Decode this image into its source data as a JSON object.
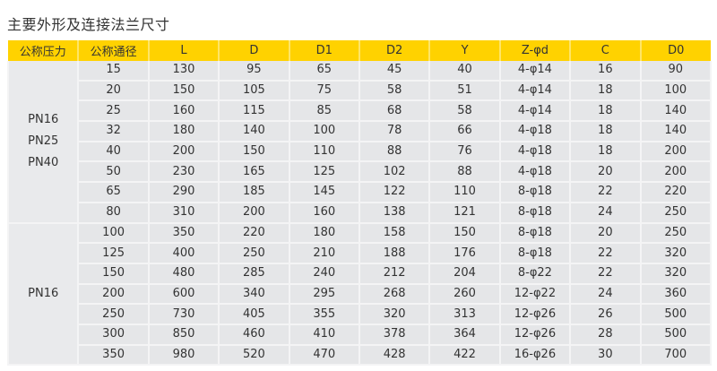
{
  "title": "主要外形及连接法兰尺寸",
  "colors": {
    "header_bg": "#ffd200",
    "body_bg": "#e5e6e8"
  },
  "table": {
    "headers": [
      "公称压力",
      "公称通径",
      "L",
      "D",
      "D1",
      "D2",
      "Y",
      "Z-φd",
      "C",
      "D0"
    ],
    "groups": [
      {
        "pressure": [
          "PN16",
          "PN25",
          "PN40"
        ],
        "rows": [
          [
            "15",
            "130",
            "95",
            "65",
            "45",
            "40",
            "4-φ14",
            "16",
            "90"
          ],
          [
            "20",
            "150",
            "105",
            "75",
            "58",
            "51",
            "4-φ14",
            "18",
            "100"
          ],
          [
            "25",
            "160",
            "115",
            "85",
            "68",
            "58",
            "4-φ14",
            "18",
            "140"
          ],
          [
            "32",
            "180",
            "140",
            "100",
            "78",
            "66",
            "4-φ18",
            "18",
            "140"
          ],
          [
            "40",
            "200",
            "150",
            "110",
            "88",
            "76",
            "4-φ18",
            "18",
            "200"
          ],
          [
            "50",
            "230",
            "165",
            "125",
            "102",
            "88",
            "4-φ18",
            "20",
            "200"
          ],
          [
            "65",
            "290",
            "185",
            "145",
            "122",
            "110",
            "8-φ18",
            "22",
            "220"
          ],
          [
            "80",
            "310",
            "200",
            "160",
            "138",
            "121",
            "8-φ18",
            "24",
            "250"
          ]
        ]
      },
      {
        "pressure": [
          "PN16"
        ],
        "rows": [
          [
            "100",
            "350",
            "220",
            "180",
            "158",
            "150",
            "8-φ18",
            "20",
            "250"
          ],
          [
            "125",
            "400",
            "250",
            "210",
            "188",
            "176",
            "8-φ18",
            "22",
            "320"
          ],
          [
            "150",
            "480",
            "285",
            "240",
            "212",
            "204",
            "8-φ22",
            "22",
            "320"
          ],
          [
            "200",
            "600",
            "340",
            "295",
            "268",
            "260",
            "12-φ22",
            "24",
            "360"
          ],
          [
            "250",
            "730",
            "405",
            "355",
            "320",
            "313",
            "12-φ26",
            "26",
            "500"
          ],
          [
            "300",
            "850",
            "460",
            "410",
            "378",
            "364",
            "12-φ26",
            "28",
            "500"
          ],
          [
            "350",
            "980",
            "520",
            "470",
            "428",
            "422",
            "16-φ26",
            "30",
            "700"
          ]
        ]
      }
    ]
  }
}
